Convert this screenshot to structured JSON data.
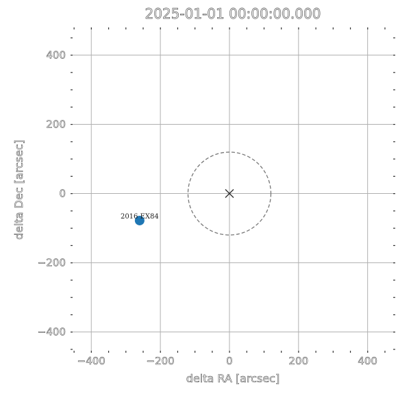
{
  "chart_data": {
    "type": "scatter",
    "title": "2025-01-01 00:00:00.000",
    "xlabel": "delta RA [arcsec]",
    "ylabel": "delta Dec [arcsec]",
    "xlim": [
      -460,
      480
    ],
    "ylim": [
      -460,
      480
    ],
    "xticks": [
      -400,
      -200,
      0,
      200,
      400
    ],
    "yticks": [
      -400,
      -200,
      0,
      200,
      400
    ],
    "xtick_labels": [
      "−400",
      "−200",
      "0",
      "200",
      "400"
    ],
    "ytick_labels": [
      "−400",
      "−200",
      "0",
      "200",
      "400"
    ],
    "grid": true,
    "points": [
      {
        "x": -260,
        "y": -78,
        "label": "2016 EX84",
        "color": "#1f77b4"
      }
    ],
    "center_marker": {
      "x": 0,
      "y": 0,
      "marker": "x"
    },
    "circle": {
      "x": 0,
      "y": 0,
      "radius": 120,
      "style": "dashed"
    },
    "colors": {
      "grid": "#b0b0b0",
      "circle": "#777777",
      "point": "#1f77b4"
    }
  }
}
